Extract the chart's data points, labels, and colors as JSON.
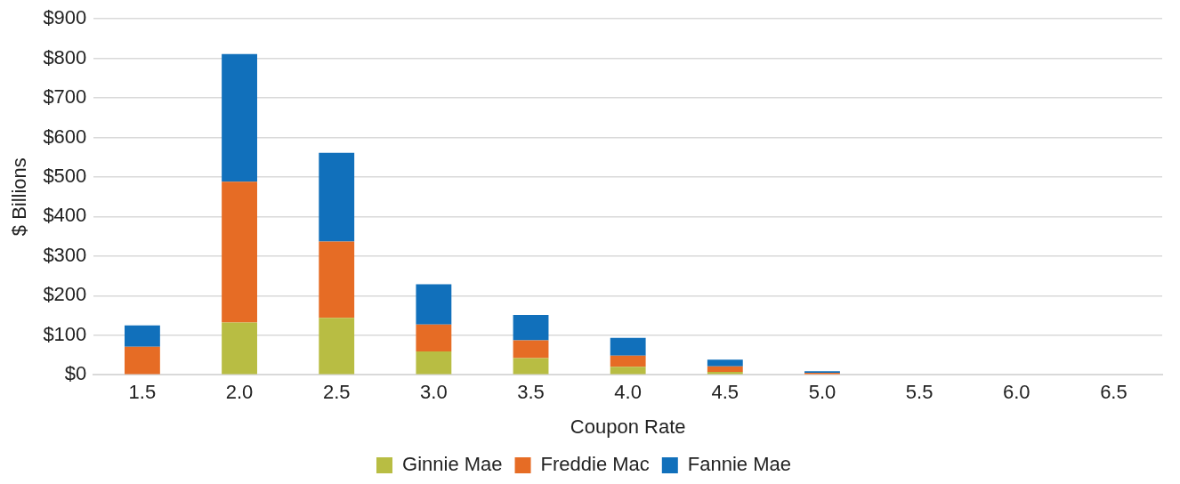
{
  "chart_data": {
    "type": "bar",
    "stacked": true,
    "xlabel": "Coupon Rate",
    "ylabel": "$ Billions",
    "categories": [
      "1.5",
      "2.0",
      "2.5",
      "3.0",
      "3.5",
      "4.0",
      "4.5",
      "5.0",
      "5.5",
      "6.0",
      "6.5"
    ],
    "series": [
      {
        "name": "Ginnie Mae",
        "color": "#b8bd43",
        "values": [
          0,
          132,
          144,
          59,
          42,
          20,
          7,
          0,
          0,
          0,
          0
        ]
      },
      {
        "name": "Freddie Mac",
        "color": "#e66c25",
        "values": [
          71,
          356,
          193,
          68,
          45,
          28,
          14,
          5,
          0,
          0,
          0
        ]
      },
      {
        "name": "Fannie Mae",
        "color": "#1170bb",
        "values": [
          54,
          323,
          224,
          102,
          64,
          45,
          17,
          4,
          0,
          0,
          0
        ]
      }
    ],
    "ylim": [
      0,
      900
    ],
    "yticks": [
      {
        "value": 0,
        "label": "$0"
      },
      {
        "value": 100,
        "label": "$100"
      },
      {
        "value": 200,
        "label": "$200"
      },
      {
        "value": 300,
        "label": "$300"
      },
      {
        "value": 400,
        "label": "$400"
      },
      {
        "value": 500,
        "label": "$500"
      },
      {
        "value": 600,
        "label": "$600"
      },
      {
        "value": 700,
        "label": "$700"
      },
      {
        "value": 800,
        "label": "$800"
      },
      {
        "value": 900,
        "label": "$900"
      }
    ],
    "grid": "y",
    "legend": "bottom"
  }
}
